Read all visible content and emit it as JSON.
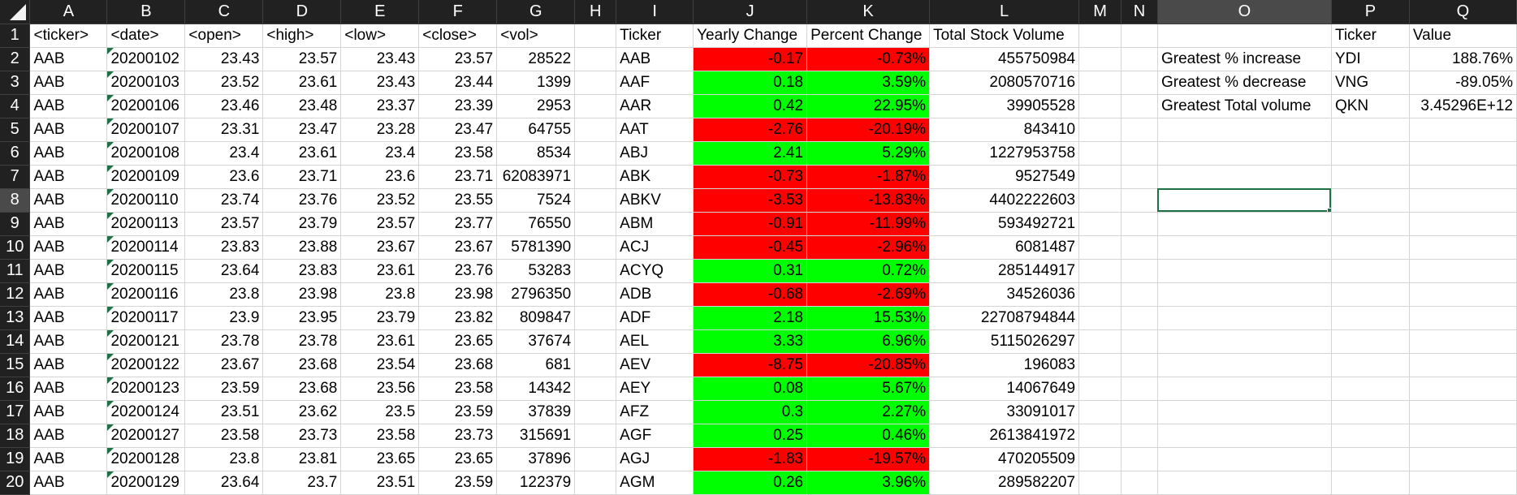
{
  "columns": [
    "A",
    "B",
    "C",
    "D",
    "E",
    "F",
    "G",
    "H",
    "I",
    "J",
    "K",
    "L",
    "M",
    "N",
    "O",
    "P",
    "Q"
  ],
  "active_column": "O",
  "active_row": 8,
  "colors": {
    "positive_fill": "#00ff00",
    "negative_fill": "#ff0000",
    "selection": "#1e7145",
    "header_bg": "#212121"
  },
  "rows": [
    {
      "n": "1",
      "a": "<ticker>",
      "b": "<date>",
      "c": "<open>",
      "d": "<high>",
      "e": "<low>",
      "f": "<close>",
      "g": "<vol>",
      "i": "Ticker",
      "j": "Yearly Change",
      "k": "Percent Change",
      "l": "Total Stock Volume",
      "o": "",
      "p": "Ticker",
      "q": "Value",
      "header": true
    },
    {
      "n": "2",
      "a": "AAB",
      "b": "20200102",
      "c": "23.43",
      "d": "23.57",
      "e": "23.43",
      "f": "23.57",
      "g": "28522",
      "i": "AAB",
      "j": "-0.17",
      "k": "-0.73%",
      "l": "455750984",
      "o": "Greatest % increase",
      "p": "YDI",
      "q": "188.76%",
      "sign": "neg"
    },
    {
      "n": "3",
      "a": "AAB",
      "b": "20200103",
      "c": "23.52",
      "d": "23.61",
      "e": "23.43",
      "f": "23.44",
      "g": "1399",
      "i": "AAF",
      "j": "0.18",
      "k": "3.59%",
      "l": "2080570716",
      "o": "Greatest % decrease",
      "p": "VNG",
      "q": "-89.05%",
      "sign": "pos"
    },
    {
      "n": "4",
      "a": "AAB",
      "b": "20200106",
      "c": "23.46",
      "d": "23.48",
      "e": "23.37",
      "f": "23.39",
      "g": "2953",
      "i": "AAR",
      "j": "0.42",
      "k": "22.95%",
      "l": "39905528",
      "o": "Greatest Total volume",
      "p": "QKN",
      "q": "3.45296E+12",
      "sign": "pos"
    },
    {
      "n": "5",
      "a": "AAB",
      "b": "20200107",
      "c": "23.31",
      "d": "23.47",
      "e": "23.28",
      "f": "23.47",
      "g": "64755",
      "i": "AAT",
      "j": "-2.76",
      "k": "-20.19%",
      "l": "843410",
      "o": "",
      "p": "",
      "q": "",
      "sign": "neg"
    },
    {
      "n": "6",
      "a": "AAB",
      "b": "20200108",
      "c": "23.4",
      "d": "23.61",
      "e": "23.4",
      "f": "23.58",
      "g": "8534",
      "i": "ABJ",
      "j": "2.41",
      "k": "5.29%",
      "l": "1227953758",
      "o": "",
      "p": "",
      "q": "",
      "sign": "pos"
    },
    {
      "n": "7",
      "a": "AAB",
      "b": "20200109",
      "c": "23.6",
      "d": "23.71",
      "e": "23.6",
      "f": "23.71",
      "g": "62083971",
      "i": "ABK",
      "j": "-0.73",
      "k": "-1.87%",
      "l": "9527549",
      "o": "",
      "p": "",
      "q": "",
      "sign": "neg"
    },
    {
      "n": "8",
      "a": "AAB",
      "b": "20200110",
      "c": "23.74",
      "d": "23.76",
      "e": "23.52",
      "f": "23.55",
      "g": "7524",
      "i": "ABKV",
      "j": "-3.53",
      "k": "-13.83%",
      "l": "4402222603",
      "o": "",
      "p": "",
      "q": "",
      "sign": "neg"
    },
    {
      "n": "9",
      "a": "AAB",
      "b": "20200113",
      "c": "23.57",
      "d": "23.79",
      "e": "23.57",
      "f": "23.77",
      "g": "76550",
      "i": "ABM",
      "j": "-0.91",
      "k": "-11.99%",
      "l": "593492721",
      "o": "",
      "p": "",
      "q": "",
      "sign": "neg"
    },
    {
      "n": "10",
      "a": "AAB",
      "b": "20200114",
      "c": "23.83",
      "d": "23.88",
      "e": "23.67",
      "f": "23.67",
      "g": "5781390",
      "i": "ACJ",
      "j": "-0.45",
      "k": "-2.96%",
      "l": "6081487",
      "o": "",
      "p": "",
      "q": "",
      "sign": "neg"
    },
    {
      "n": "11",
      "a": "AAB",
      "b": "20200115",
      "c": "23.64",
      "d": "23.83",
      "e": "23.61",
      "f": "23.76",
      "g": "53283",
      "i": "ACYQ",
      "j": "0.31",
      "k": "0.72%",
      "l": "285144917",
      "o": "",
      "p": "",
      "q": "",
      "sign": "pos"
    },
    {
      "n": "12",
      "a": "AAB",
      "b": "20200116",
      "c": "23.8",
      "d": "23.98",
      "e": "23.8",
      "f": "23.98",
      "g": "2796350",
      "i": "ADB",
      "j": "-0.68",
      "k": "-2.69%",
      "l": "34526036",
      "o": "",
      "p": "",
      "q": "",
      "sign": "neg"
    },
    {
      "n": "13",
      "a": "AAB",
      "b": "20200117",
      "c": "23.9",
      "d": "23.95",
      "e": "23.79",
      "f": "23.82",
      "g": "809847",
      "i": "ADF",
      "j": "2.18",
      "k": "15.53%",
      "l": "22708794844",
      "o": "",
      "p": "",
      "q": "",
      "sign": "pos"
    },
    {
      "n": "14",
      "a": "AAB",
      "b": "20200121",
      "c": "23.78",
      "d": "23.78",
      "e": "23.61",
      "f": "23.65",
      "g": "37674",
      "i": "AEL",
      "j": "3.33",
      "k": "6.96%",
      "l": "5115026297",
      "o": "",
      "p": "",
      "q": "",
      "sign": "pos"
    },
    {
      "n": "15",
      "a": "AAB",
      "b": "20200122",
      "c": "23.67",
      "d": "23.68",
      "e": "23.54",
      "f": "23.68",
      "g": "681",
      "i": "AEV",
      "j": "-8.75",
      "k": "-20.85%",
      "l": "196083",
      "o": "",
      "p": "",
      "q": "",
      "sign": "neg"
    },
    {
      "n": "16",
      "a": "AAB",
      "b": "20200123",
      "c": "23.59",
      "d": "23.68",
      "e": "23.56",
      "f": "23.58",
      "g": "14342",
      "i": "AEY",
      "j": "0.08",
      "k": "5.67%",
      "l": "14067649",
      "o": "",
      "p": "",
      "q": "",
      "sign": "pos"
    },
    {
      "n": "17",
      "a": "AAB",
      "b": "20200124",
      "c": "23.51",
      "d": "23.62",
      "e": "23.5",
      "f": "23.59",
      "g": "37839",
      "i": "AFZ",
      "j": "0.3",
      "k": "2.27%",
      "l": "33091017",
      "o": "",
      "p": "",
      "q": "",
      "sign": "pos"
    },
    {
      "n": "18",
      "a": "AAB",
      "b": "20200127",
      "c": "23.58",
      "d": "23.73",
      "e": "23.58",
      "f": "23.73",
      "g": "315691",
      "i": "AGF",
      "j": "0.25",
      "k": "0.46%",
      "l": "2613841972",
      "o": "",
      "p": "",
      "q": "",
      "sign": "pos"
    },
    {
      "n": "19",
      "a": "AAB",
      "b": "20200128",
      "c": "23.8",
      "d": "23.81",
      "e": "23.65",
      "f": "23.65",
      "g": "37896",
      "i": "AGJ",
      "j": "-1.83",
      "k": "-19.57%",
      "l": "470205509",
      "o": "",
      "p": "",
      "q": "",
      "sign": "neg"
    },
    {
      "n": "20",
      "a": "AAB",
      "b": "20200129",
      "c": "23.64",
      "d": "23.7",
      "e": "23.51",
      "f": "23.59",
      "g": "122379",
      "i": "AGM",
      "j": "0.26",
      "k": "3.96%",
      "l": "289582207",
      "o": "",
      "p": "",
      "q": "",
      "sign": "pos"
    }
  ]
}
